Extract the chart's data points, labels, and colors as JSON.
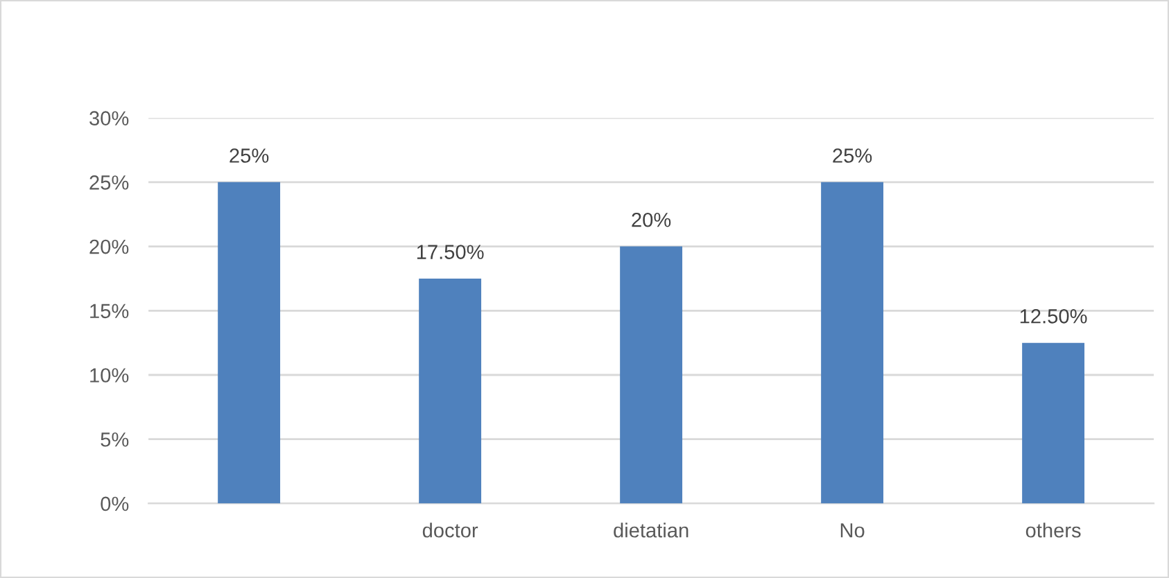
{
  "chart_data": {
    "type": "bar",
    "categories": [
      null,
      "doctor",
      "dietatian",
      "No",
      "others"
    ],
    "values": [
      25,
      17.5,
      20,
      25,
      12.5
    ],
    "value_labels": [
      "25%",
      "17.50%",
      "20%",
      "25%",
      "12.50%"
    ],
    "color": "#4f81bd",
    "ylim": [
      0,
      30
    ],
    "yticks": [
      {
        "value": 0,
        "label": "0%"
      },
      {
        "value": 5,
        "label": "5%"
      },
      {
        "value": 10,
        "label": "10%"
      },
      {
        "value": 15,
        "label": "15%"
      },
      {
        "value": 20,
        "label": "20%"
      },
      {
        "value": 25,
        "label": "25%"
      },
      {
        "value": 30,
        "label": "30%"
      }
    ],
    "grid": "y",
    "legend": false
  }
}
